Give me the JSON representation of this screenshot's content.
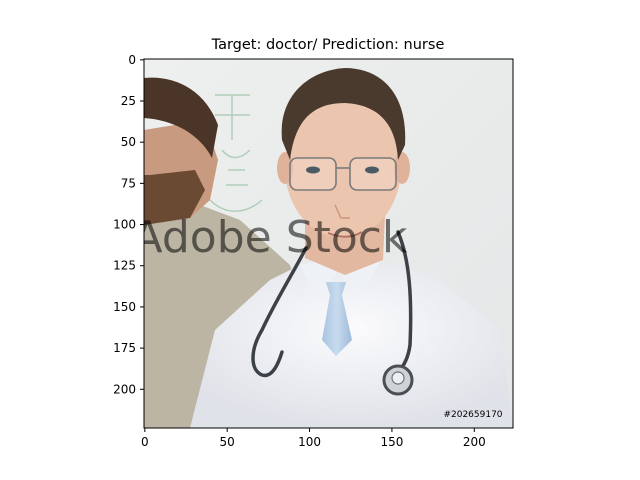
{
  "chart_data": {
    "type": "image",
    "title": "Target: doctor/ Prediction: nurse",
    "x_ticks": [
      "0",
      "50",
      "100",
      "150",
      "200"
    ],
    "y_ticks": [
      "0",
      "25",
      "50",
      "75",
      "100",
      "125",
      "150",
      "175",
      "200"
    ],
    "x_tick_values": [
      0,
      50,
      100,
      150,
      200
    ],
    "y_tick_values": [
      0,
      25,
      50,
      75,
      100,
      125,
      150,
      175,
      200
    ],
    "xlim": [
      -0.5,
      223.5
    ],
    "ylim": [
      223.5,
      -0.5
    ],
    "image_size": [
      224,
      224
    ],
    "image_overlay_text": {
      "watermark": "Adobe Stock",
      "stock_id": "#202659170"
    }
  }
}
